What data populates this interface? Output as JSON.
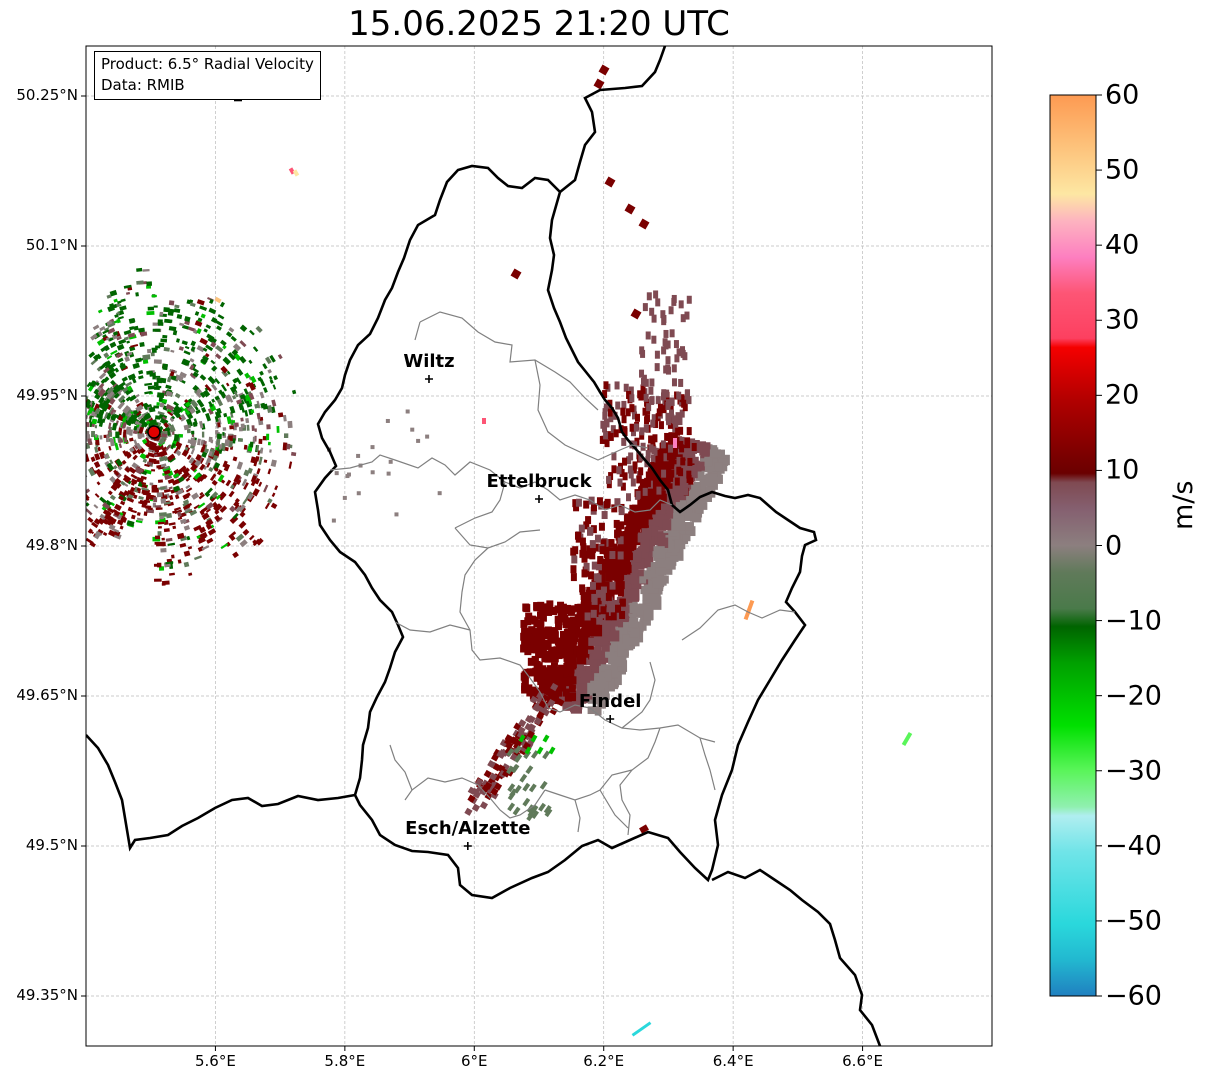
{
  "title": "15.06.2025 21:20 UTC",
  "info": {
    "product": "Product: 6.5° Radial Velocity",
    "data": "Data: RMIB"
  },
  "map": {
    "lon_range": [
      5.4,
      6.8
    ],
    "lat_range": [
      49.3,
      50.3
    ],
    "lat_ticks": [
      {
        "value": 50.25,
        "label": "50.25°N"
      },
      {
        "value": 50.1,
        "label": "50.1°N"
      },
      {
        "value": 49.95,
        "label": "49.95°N"
      },
      {
        "value": 49.8,
        "label": "49.8°N"
      },
      {
        "value": 49.65,
        "label": "49.65°N"
      },
      {
        "value": 49.5,
        "label": "49.5°N"
      },
      {
        "value": 49.35,
        "label": "49.35°N"
      }
    ],
    "lon_ticks": [
      {
        "value": 5.6,
        "label": "5.6°E"
      },
      {
        "value": 5.8,
        "label": "5.8°E"
      },
      {
        "value": 6.0,
        "label": "6°E"
      },
      {
        "value": 6.2,
        "label": "6.2°E"
      },
      {
        "value": 6.4,
        "label": "6.4°E"
      },
      {
        "value": 6.6,
        "label": "6.6°E"
      }
    ],
    "gridlines": true,
    "cities": [
      {
        "name": "Wiltz",
        "lon": 5.93,
        "lat": 49.967
      },
      {
        "name": "Ettelbruck",
        "lon": 6.1,
        "lat": 49.847
      },
      {
        "name": "Findel",
        "lon": 6.21,
        "lat": 49.627
      },
      {
        "name": "Esch/Alzette",
        "lon": 5.99,
        "lat": 49.5
      }
    ],
    "radar_site": {
      "lon": 5.505,
      "lat": 49.914
    }
  },
  "colorbar": {
    "label": "m/s",
    "min": -60,
    "max": 60,
    "ticks": [
      {
        "value": 60,
        "label": "60"
      },
      {
        "value": 50,
        "label": "50"
      },
      {
        "value": 40,
        "label": "40"
      },
      {
        "value": 30,
        "label": "30"
      },
      {
        "value": 20,
        "label": "20"
      },
      {
        "value": 10,
        "label": "10"
      },
      {
        "value": 0,
        "label": "0"
      },
      {
        "value": -10,
        "label": "−10"
      },
      {
        "value": -20,
        "label": "−20"
      },
      {
        "value": -30,
        "label": "−30"
      },
      {
        "value": -40,
        "label": "−40"
      },
      {
        "value": -50,
        "label": "−50"
      },
      {
        "value": -60,
        "label": "−60"
      }
    ],
    "colors": {
      "orange": "#fd9a52",
      "light-orange": "#fdc47d",
      "pale-yellow": "#fde7a3",
      "pink": "#fdb3c0",
      "magenta-pink": "#fd7fc0",
      "rose": "#fd5575",
      "red": "#f50000",
      "dark-red": "#7a0000",
      "mauve": "#7f4a52",
      "grey": "#8c7f7f",
      "grey-green": "#607a5a",
      "dark-green": "#006400",
      "green": "#00c000",
      "light-green": "#5af55a",
      "pale-cyan": "#b0eef0",
      "cyan": "#2ad8dc",
      "blue": "#2080c0"
    }
  }
}
